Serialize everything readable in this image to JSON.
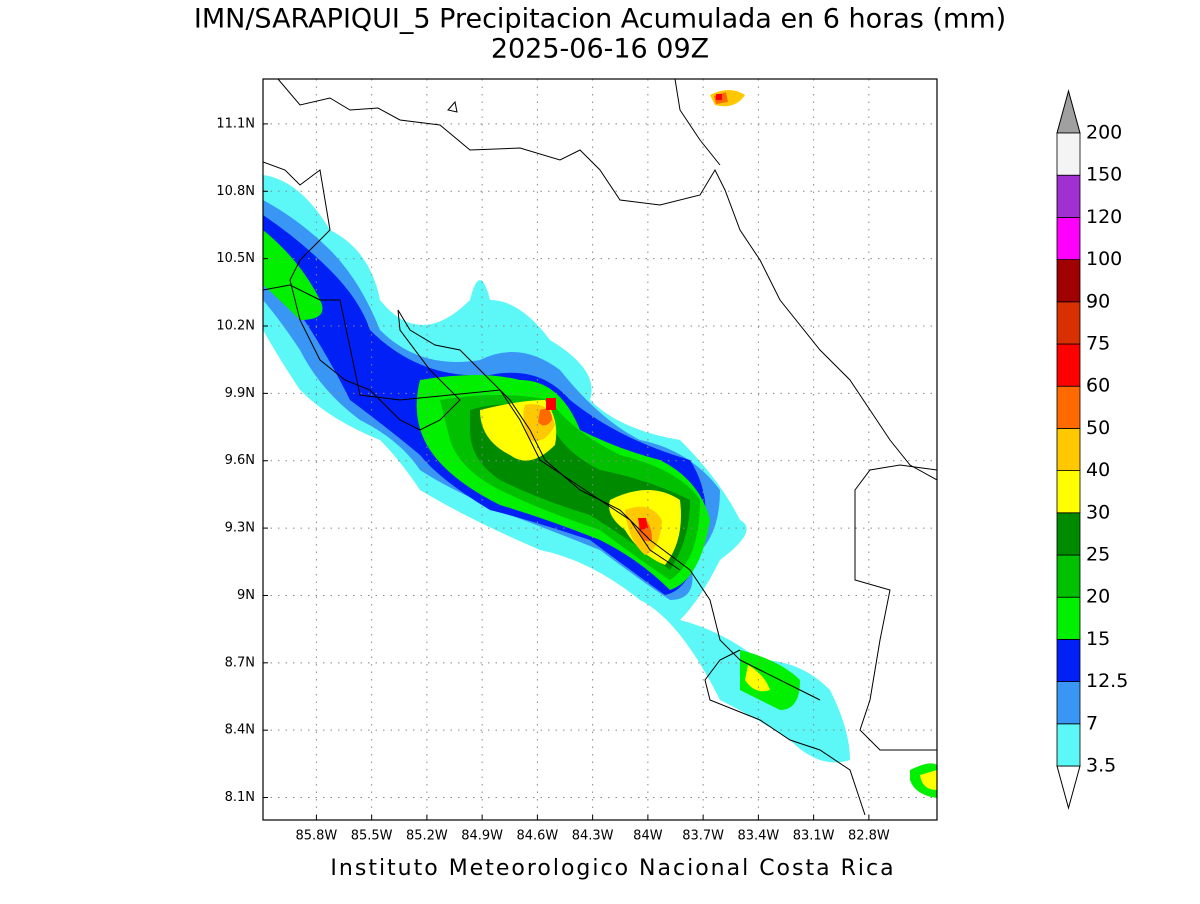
{
  "map": {
    "title": "IMN/SARAPIQUI_5 Precipitacion Acumulada en 6 horas (mm)",
    "subtitle": "2025-06-16 09Z",
    "footer": "Instituto Meteorologico Nacional Costa Rica",
    "lonlim": [
      -86.09,
      -82.43
    ],
    "latlim": [
      8.0,
      11.3
    ],
    "lon_ticks": [
      {
        "value": -85.8,
        "label": "85.8W"
      },
      {
        "value": -85.5,
        "label": "85.5W"
      },
      {
        "value": -85.2,
        "label": "85.2W"
      },
      {
        "value": -84.9,
        "label": "84.9W"
      },
      {
        "value": -84.6,
        "label": "84.6W"
      },
      {
        "value": -84.3,
        "label": "84.3W"
      },
      {
        "value": -84,
        "label": "84W"
      },
      {
        "value": -83.7,
        "label": "83.7W"
      },
      {
        "value": -83.4,
        "label": "83.4W"
      },
      {
        "value": -83.1,
        "label": "83.1W"
      },
      {
        "value": -82.8,
        "label": "82.8W"
      }
    ],
    "lat_ticks": [
      {
        "value": 8.1,
        "label": "8.1N"
      },
      {
        "value": 8.4,
        "label": "8.4N"
      },
      {
        "value": 8.7,
        "label": "8.7N"
      },
      {
        "value": 9,
        "label": "9N"
      },
      {
        "value": 9.3,
        "label": "9.3N"
      },
      {
        "value": 9.6,
        "label": "9.6N"
      },
      {
        "value": 9.9,
        "label": "9.9N"
      },
      {
        "value": 10.2,
        "label": "10.2N"
      },
      {
        "value": 10.5,
        "label": "10.5N"
      },
      {
        "value": 10.8,
        "label": "10.8N"
      },
      {
        "value": 11.1,
        "label": "11.1N"
      }
    ],
    "grid": true
  },
  "colorbar": {
    "levels": [
      3.5,
      7,
      12.5,
      15,
      20,
      25,
      30,
      40,
      50,
      60,
      75,
      90,
      100,
      120,
      150,
      200
    ],
    "colors": [
      "#5cf7f7",
      "#3a96f5",
      "#0020f5",
      "#00f000",
      "#00c000",
      "#008a00",
      "#ffff00",
      "#ffc800",
      "#ff6a00",
      "#ff0000",
      "#d83000",
      "#a00000",
      "#ff00ff",
      "#a030d0",
      "#f4f4f4"
    ],
    "under_color": "#ffffff",
    "over_color": "#a0a0a0"
  }
}
